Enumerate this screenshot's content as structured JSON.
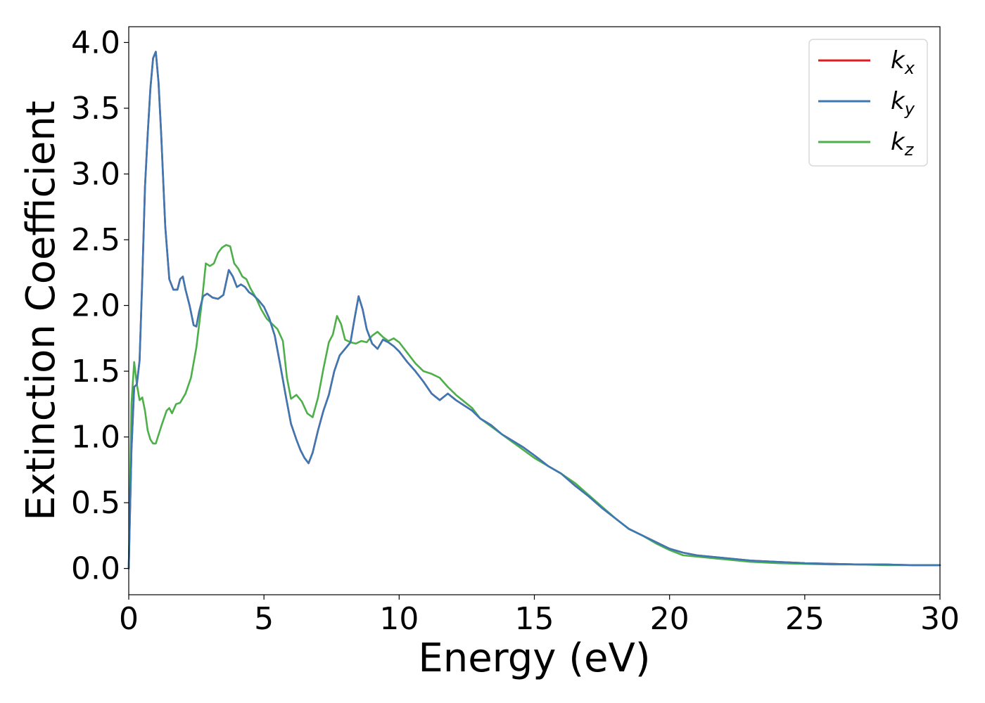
{
  "chart_data": {
    "type": "line",
    "title": "",
    "xlabel": "Energy (eV)",
    "ylabel": "Extinction Coefficient",
    "xlim": [
      0,
      30
    ],
    "ylim": [
      -0.2,
      4.12
    ],
    "xticks": [
      0,
      5,
      10,
      15,
      20,
      25,
      30
    ],
    "xtick_labels": [
      "0",
      "5",
      "10",
      "15",
      "20",
      "25",
      "30"
    ],
    "yticks": [
      0.0,
      0.5,
      1.0,
      1.5,
      2.0,
      2.5,
      3.0,
      3.5,
      4.0
    ],
    "ytick_labels": [
      "0.0",
      "0.5",
      "1.0",
      "1.5",
      "2.0",
      "2.5",
      "3.0",
      "3.5",
      "4.0"
    ],
    "grid": false,
    "legend_position": "top-right",
    "series": [
      {
        "name": "k_x",
        "legend_main": "k",
        "legend_sub": "x",
        "color": "#e41a1c",
        "x": [
          0,
          0.1,
          0.2,
          0.3,
          0.4,
          0.5,
          0.6,
          0.7,
          0.8,
          0.9,
          1.0,
          1.1,
          1.2,
          1.35,
          1.5,
          1.65,
          1.8,
          1.9,
          2.0,
          2.1,
          2.25,
          2.4,
          2.5,
          2.6,
          2.75,
          2.9,
          3.1,
          3.3,
          3.5,
          3.7,
          3.85,
          4.0,
          4.15,
          4.3,
          4.45,
          4.6,
          4.8,
          5.0,
          5.2,
          5.4,
          5.6,
          5.8,
          6.0,
          6.2,
          6.35,
          6.5,
          6.65,
          6.8,
          7.0,
          7.2,
          7.4,
          7.6,
          7.8,
          8.0,
          8.2,
          8.35,
          8.5,
          8.65,
          8.8,
          9.0,
          9.2,
          9.4,
          9.6,
          9.8,
          10.0,
          10.3,
          10.6,
          10.9,
          11.2,
          11.5,
          11.8,
          12.1,
          12.4,
          12.7,
          13.0,
          13.4,
          13.8,
          14.2,
          14.6,
          15.0,
          15.5,
          16.0,
          16.5,
          17.0,
          17.5,
          18.0,
          18.5,
          19.0,
          19.5,
          20.0,
          20.5,
          21.0,
          22.0,
          23.0,
          24.0,
          25.0,
          26.0,
          27.0,
          28.0,
          29.0,
          30.0
        ],
        "y": [
          0.0,
          0.9,
          1.38,
          1.4,
          1.58,
          2.2,
          2.9,
          3.3,
          3.65,
          3.88,
          3.93,
          3.7,
          3.3,
          2.6,
          2.2,
          2.12,
          2.12,
          2.2,
          2.22,
          2.12,
          2.0,
          1.85,
          1.84,
          1.95,
          2.07,
          2.09,
          2.06,
          2.05,
          2.08,
          2.27,
          2.22,
          2.14,
          2.16,
          2.14,
          2.1,
          2.08,
          2.04,
          1.99,
          1.9,
          1.77,
          1.55,
          1.32,
          1.1,
          0.98,
          0.9,
          0.84,
          0.8,
          0.88,
          1.05,
          1.2,
          1.32,
          1.5,
          1.62,
          1.67,
          1.72,
          1.9,
          2.07,
          1.97,
          1.82,
          1.71,
          1.67,
          1.74,
          1.72,
          1.69,
          1.65,
          1.57,
          1.5,
          1.42,
          1.33,
          1.28,
          1.33,
          1.28,
          1.24,
          1.2,
          1.14,
          1.09,
          1.02,
          0.97,
          0.92,
          0.86,
          0.78,
          0.72,
          0.63,
          0.55,
          0.46,
          0.38,
          0.3,
          0.25,
          0.2,
          0.15,
          0.12,
          0.1,
          0.08,
          0.06,
          0.05,
          0.04,
          0.035,
          0.03,
          0.03,
          0.025,
          0.025
        ]
      },
      {
        "name": "k_y",
        "legend_main": "k",
        "legend_sub": "y",
        "color": "#3c78b4",
        "x": [
          0,
          0.1,
          0.2,
          0.3,
          0.4,
          0.5,
          0.6,
          0.7,
          0.8,
          0.9,
          1.0,
          1.1,
          1.2,
          1.35,
          1.5,
          1.65,
          1.8,
          1.9,
          2.0,
          2.1,
          2.25,
          2.4,
          2.5,
          2.6,
          2.75,
          2.9,
          3.1,
          3.3,
          3.5,
          3.7,
          3.85,
          4.0,
          4.15,
          4.3,
          4.45,
          4.6,
          4.8,
          5.0,
          5.2,
          5.4,
          5.6,
          5.8,
          6.0,
          6.2,
          6.35,
          6.5,
          6.65,
          6.8,
          7.0,
          7.2,
          7.4,
          7.6,
          7.8,
          8.0,
          8.2,
          8.35,
          8.5,
          8.65,
          8.8,
          9.0,
          9.2,
          9.4,
          9.6,
          9.8,
          10.0,
          10.3,
          10.6,
          10.9,
          11.2,
          11.5,
          11.8,
          12.1,
          12.4,
          12.7,
          13.0,
          13.4,
          13.8,
          14.2,
          14.6,
          15.0,
          15.5,
          16.0,
          16.5,
          17.0,
          17.5,
          18.0,
          18.5,
          19.0,
          19.5,
          20.0,
          20.5,
          21.0,
          22.0,
          23.0,
          24.0,
          25.0,
          26.0,
          27.0,
          28.0,
          29.0,
          30.0
        ],
        "y": [
          0.0,
          0.9,
          1.38,
          1.4,
          1.58,
          2.2,
          2.9,
          3.3,
          3.65,
          3.88,
          3.93,
          3.7,
          3.3,
          2.6,
          2.2,
          2.12,
          2.12,
          2.2,
          2.22,
          2.12,
          2.0,
          1.85,
          1.84,
          1.95,
          2.07,
          2.09,
          2.06,
          2.05,
          2.08,
          2.27,
          2.22,
          2.14,
          2.16,
          2.14,
          2.1,
          2.08,
          2.04,
          1.99,
          1.9,
          1.77,
          1.55,
          1.32,
          1.1,
          0.98,
          0.9,
          0.84,
          0.8,
          0.88,
          1.05,
          1.2,
          1.32,
          1.5,
          1.62,
          1.67,
          1.72,
          1.9,
          2.07,
          1.97,
          1.82,
          1.71,
          1.67,
          1.74,
          1.72,
          1.69,
          1.65,
          1.57,
          1.5,
          1.42,
          1.33,
          1.28,
          1.33,
          1.28,
          1.24,
          1.2,
          1.14,
          1.09,
          1.02,
          0.97,
          0.92,
          0.86,
          0.78,
          0.72,
          0.63,
          0.55,
          0.46,
          0.38,
          0.3,
          0.25,
          0.2,
          0.15,
          0.12,
          0.1,
          0.08,
          0.06,
          0.05,
          0.04,
          0.035,
          0.03,
          0.03,
          0.025,
          0.025
        ]
      },
      {
        "name": "k_z",
        "legend_main": "k",
        "legend_sub": "z",
        "color": "#4daf4a",
        "x": [
          0,
          0.1,
          0.2,
          0.3,
          0.4,
          0.5,
          0.6,
          0.7,
          0.8,
          0.9,
          1.0,
          1.2,
          1.4,
          1.5,
          1.6,
          1.75,
          1.9,
          2.1,
          2.3,
          2.5,
          2.7,
          2.85,
          3.0,
          3.15,
          3.3,
          3.45,
          3.6,
          3.75,
          3.9,
          4.05,
          4.2,
          4.35,
          4.5,
          4.7,
          4.9,
          5.1,
          5.3,
          5.5,
          5.7,
          5.85,
          6.0,
          6.2,
          6.4,
          6.6,
          6.8,
          7.0,
          7.2,
          7.4,
          7.55,
          7.7,
          7.85,
          8.0,
          8.2,
          8.4,
          8.6,
          8.8,
          9.0,
          9.2,
          9.4,
          9.6,
          9.8,
          10.0,
          10.3,
          10.6,
          10.9,
          11.2,
          11.5,
          11.8,
          12.1,
          12.4,
          12.7,
          13.0,
          13.4,
          13.8,
          14.2,
          14.6,
          15.0,
          15.5,
          16.0,
          16.5,
          17.0,
          17.5,
          18.0,
          18.5,
          19.0,
          19.5,
          20.0,
          20.5,
          21.0,
          22.0,
          23.0,
          24.0,
          25.0,
          26.0,
          27.0,
          28.0,
          29.0,
          30.0
        ],
        "y": [
          0.0,
          1.25,
          1.57,
          1.4,
          1.28,
          1.3,
          1.2,
          1.05,
          0.98,
          0.95,
          0.95,
          1.08,
          1.2,
          1.22,
          1.18,
          1.25,
          1.26,
          1.33,
          1.45,
          1.68,
          2.02,
          2.32,
          2.3,
          2.32,
          2.4,
          2.44,
          2.46,
          2.45,
          2.32,
          2.28,
          2.22,
          2.2,
          2.13,
          2.06,
          1.97,
          1.9,
          1.86,
          1.82,
          1.73,
          1.45,
          1.29,
          1.32,
          1.27,
          1.18,
          1.15,
          1.3,
          1.52,
          1.72,
          1.78,
          1.92,
          1.86,
          1.74,
          1.72,
          1.71,
          1.73,
          1.72,
          1.77,
          1.8,
          1.76,
          1.73,
          1.75,
          1.72,
          1.64,
          1.56,
          1.5,
          1.48,
          1.45,
          1.38,
          1.32,
          1.27,
          1.22,
          1.14,
          1.08,
          1.02,
          0.96,
          0.9,
          0.84,
          0.78,
          0.72,
          0.65,
          0.56,
          0.47,
          0.38,
          0.3,
          0.25,
          0.19,
          0.14,
          0.1,
          0.09,
          0.07,
          0.05,
          0.04,
          0.035,
          0.03,
          0.03,
          0.025,
          0.025,
          0.025
        ]
      }
    ]
  }
}
